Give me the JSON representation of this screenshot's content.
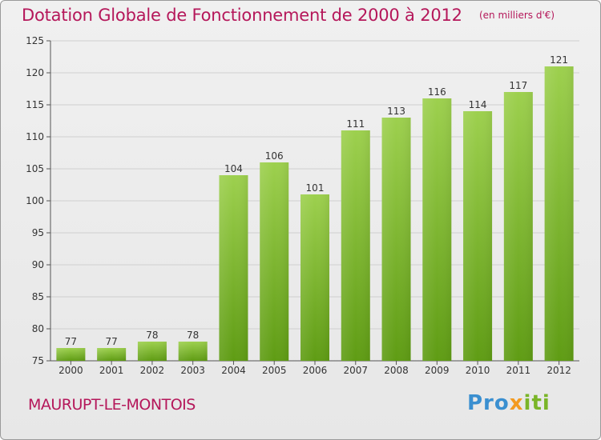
{
  "header": {
    "title": "Dotation Globale de Fonctionnement de 2000 à 2012",
    "unit": "(en milliers d'€)"
  },
  "footer": {
    "commune": "MAURUPT-LE-MONTOIS",
    "brand": "Proxiti",
    "brand_parts": [
      "Pro",
      "x",
      "iti"
    ]
  },
  "colors": {
    "title": "#b5175a",
    "bar_top": "#9dd04e",
    "bar_bottom": "#5f9c14",
    "brand_blue": "#3a8fd0",
    "brand_orange": "#f39a1f",
    "brand_green": "#7ab528"
  },
  "chart_data": {
    "type": "bar",
    "categories": [
      "2000",
      "2001",
      "2002",
      "2003",
      "2004",
      "2005",
      "2006",
      "2007",
      "2008",
      "2009",
      "2010",
      "2011",
      "2012"
    ],
    "values": [
      77,
      77,
      78,
      78,
      104,
      106,
      101,
      111,
      113,
      116,
      114,
      117,
      121
    ],
    "ylim": [
      75,
      125
    ],
    "yticks": [
      75,
      80,
      85,
      90,
      95,
      100,
      105,
      110,
      115,
      120,
      125
    ],
    "grid": true,
    "legend": "none"
  }
}
